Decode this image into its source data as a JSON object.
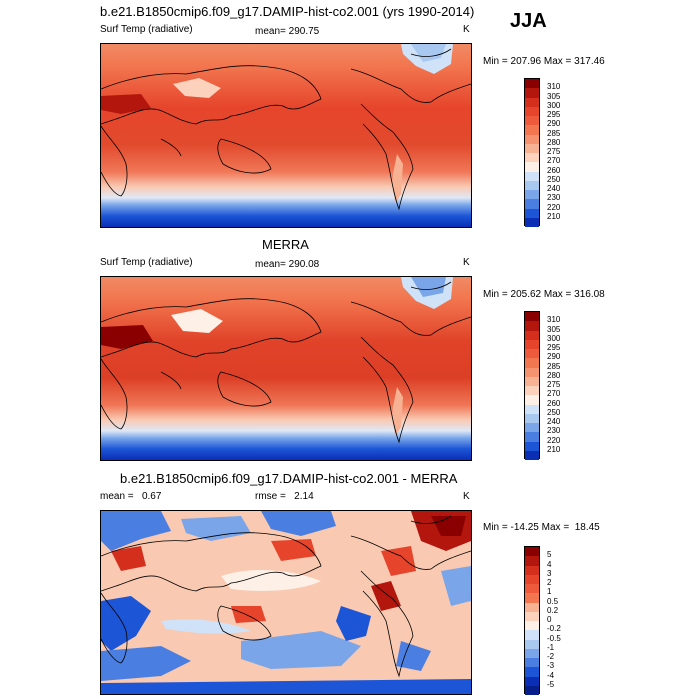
{
  "season": "JJA",
  "panels": [
    {
      "title": "b.e21.B1850cmip6.f09_g17.DAMIP-hist-co2.001 (yrs 1990-2014)",
      "left_label": "Surf Temp (radiative)",
      "center_label": "mean= 290.75",
      "units": "K",
      "minmax": "Min = 207.96 Max = 317.46",
      "colorbar_labels": [
        "310",
        "305",
        "300",
        "295",
        "290",
        "285",
        "280",
        "275",
        "270",
        "260",
        "250",
        "240",
        "230",
        "220",
        "210"
      ],
      "colorbar_colors": [
        "#8a0000",
        "#b3160d",
        "#d42f1c",
        "#e6452b",
        "#ee5b3c",
        "#f2764f",
        "#f59370",
        "#f7b294",
        "#fcd2bd",
        "#fdf0e6",
        "#cfe2f7",
        "#a9c8f0",
        "#7aa6e9",
        "#4a7ee0",
        "#1c55d6",
        "#0a2fb5"
      ]
    },
    {
      "title": "MERRA",
      "left_label": "Surf Temp (radiative)",
      "center_label": "mean= 290.08",
      "units": "K",
      "minmax": "Min = 205.62 Max = 316.08",
      "colorbar_labels": [
        "310",
        "305",
        "300",
        "295",
        "290",
        "285",
        "280",
        "275",
        "270",
        "260",
        "250",
        "240",
        "230",
        "220",
        "210"
      ],
      "colorbar_colors": [
        "#8a0000",
        "#b3160d",
        "#d42f1c",
        "#e6452b",
        "#ee5b3c",
        "#f2764f",
        "#f59370",
        "#f7b294",
        "#fcd2bd",
        "#fdf0e6",
        "#cfe2f7",
        "#a9c8f0",
        "#7aa6e9",
        "#4a7ee0",
        "#1c55d6",
        "#0a2fb5"
      ]
    },
    {
      "title": "b.e21.B1850cmip6.f09_g17.DAMIP-hist-co2.001 - MERRA",
      "left_label": "mean =   0.67",
      "center_label": "rmse =   2.14",
      "units": "K",
      "minmax": "Min = -14.25 Max =  18.45",
      "colorbar_labels": [
        "5",
        "4",
        "3",
        "2",
        "1",
        "0.5",
        "0.2",
        "0",
        "-0.2",
        "-0.5",
        "-1",
        "-2",
        "-3",
        "-4",
        "-5"
      ],
      "colorbar_colors": [
        "#8a0000",
        "#b3160d",
        "#d42f1c",
        "#e6452b",
        "#ee5b3c",
        "#f2764f",
        "#f7b294",
        "#fcd2bd",
        "#fdf0e6",
        "#cfe2f7",
        "#a9c8f0",
        "#7aa6e9",
        "#4a7ee0",
        "#1c55d6",
        "#0a2fb5",
        "#061f8a"
      ]
    }
  ]
}
